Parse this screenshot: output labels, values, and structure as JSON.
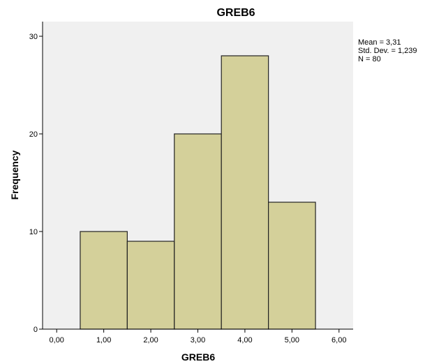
{
  "chart_data": {
    "type": "bar",
    "title": "GREB6",
    "xlabel": "GREB6",
    "ylabel": "Frequency",
    "bins": [
      {
        "center": 1.0,
        "from": 0.5,
        "to": 1.5,
        "value": 10
      },
      {
        "center": 2.0,
        "from": 1.5,
        "to": 2.5,
        "value": 9
      },
      {
        "center": 3.0,
        "from": 2.5,
        "to": 3.5,
        "value": 20
      },
      {
        "center": 4.0,
        "from": 3.5,
        "to": 4.5,
        "value": 28
      },
      {
        "center": 5.0,
        "from": 4.5,
        "to": 5.5,
        "value": 13
      }
    ],
    "xlim": [
      -0.3,
      6.3
    ],
    "ylim": [
      0,
      31.5
    ],
    "x_ticks": [
      {
        "value": 0,
        "label": "0,00"
      },
      {
        "value": 1,
        "label": "1,00"
      },
      {
        "value": 2,
        "label": "2,00"
      },
      {
        "value": 3,
        "label": "3,00"
      },
      {
        "value": 4,
        "label": "4,00"
      },
      {
        "value": 5,
        "label": "5,00"
      },
      {
        "value": 6,
        "label": "6,00"
      }
    ],
    "y_ticks": [
      {
        "value": 0,
        "label": "0"
      },
      {
        "value": 10,
        "label": "10"
      },
      {
        "value": 20,
        "label": "20"
      },
      {
        "value": 30,
        "label": "30"
      }
    ],
    "stats": {
      "mean": "Mean = 3,31",
      "std_dev": "Std. Dev. = 1,239",
      "n": "N = 80"
    },
    "grid": false,
    "colors": {
      "bar_fill": "#d4d09a",
      "bar_stroke": "#222222",
      "plot_background": "#f0f0f0",
      "axis": "#000000"
    }
  }
}
